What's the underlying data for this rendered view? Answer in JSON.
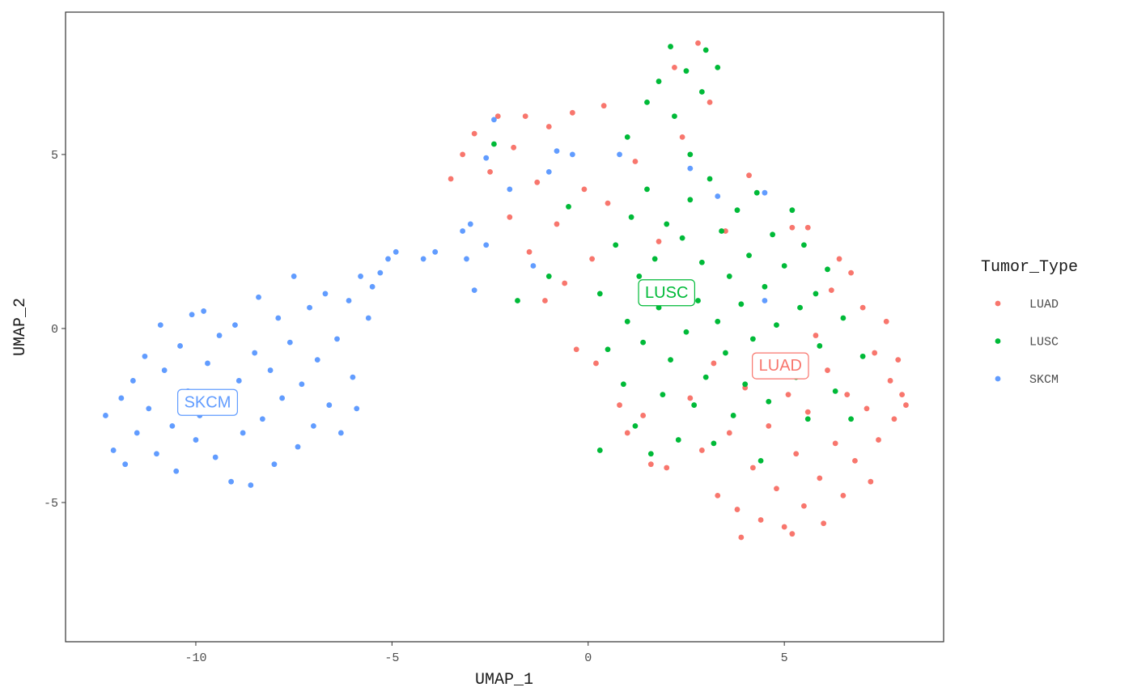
{
  "chart_data": {
    "type": "scatter",
    "x_label": "UMAP_1",
    "y_label": "UMAP_2",
    "xlim": [
      -13.32,
      9.06
    ],
    "ylim": [
      -9.0,
      9.09
    ],
    "xticks": [
      -10,
      -5,
      0,
      5
    ],
    "yticks": [
      -5,
      0,
      5
    ],
    "grid": false,
    "legend_title": "Tumor_Type",
    "legend_position": "right",
    "series": [
      {
        "name": "LUAD",
        "color": "#F8766D",
        "x": [
          -3.5,
          -3.2,
          -2.9,
          -2.5,
          -2.3,
          -2.0,
          -1.9,
          -1.6,
          -1.5,
          -1.3,
          -1.1,
          -1.0,
          -0.8,
          -0.6,
          -0.4,
          -0.3,
          -0.1,
          0.1,
          0.2,
          0.4,
          0.5,
          0.8,
          1.0,
          1.2,
          1.4,
          1.6,
          1.8,
          2.0,
          2.2,
          2.4,
          2.6,
          2.8,
          2.9,
          3.1,
          3.2,
          3.3,
          3.5,
          3.6,
          3.8,
          4.0,
          4.1,
          4.2,
          4.4,
          4.5,
          4.6,
          4.8,
          5.0,
          5.1,
          5.2,
          5.3,
          5.5,
          5.6,
          5.8,
          5.9,
          6.0,
          6.1,
          6.2,
          6.3,
          6.5,
          6.6,
          6.7,
          6.8,
          7.0,
          7.1,
          7.2,
          7.3,
          7.4,
          7.6,
          7.7,
          7.8,
          8.0,
          8.1,
          7.9,
          6.4,
          5.6,
          3.9,
          5.2
        ],
        "y": [
          4.3,
          5.0,
          5.6,
          4.5,
          6.1,
          3.2,
          5.2,
          6.1,
          2.2,
          4.2,
          0.8,
          5.8,
          3.0,
          1.3,
          6.2,
          -0.6,
          4.0,
          2.0,
          -1.0,
          6.4,
          3.6,
          -2.2,
          -3.0,
          4.8,
          -2.5,
          -3.9,
          2.5,
          -4.0,
          7.5,
          5.5,
          -2.0,
          8.2,
          -3.5,
          6.5,
          -1.0,
          -4.8,
          2.8,
          -3.0,
          -5.2,
          -1.7,
          4.4,
          -4.0,
          -5.5,
          -0.8,
          -2.8,
          -4.6,
          -5.7,
          -1.9,
          2.9,
          -3.6,
          -5.1,
          -2.4,
          -0.2,
          -4.3,
          -5.6,
          -1.2,
          1.1,
          -3.3,
          -4.8,
          -1.9,
          1.6,
          -3.8,
          0.6,
          -2.3,
          -4.4,
          -0.7,
          -3.2,
          0.2,
          -1.5,
          -2.6,
          -1.9,
          -2.2,
          -0.9,
          2.0,
          2.9,
          -6.0,
          -5.9
        ]
      },
      {
        "name": "LUSC",
        "color": "#00BA38",
        "x": [
          0.3,
          0.5,
          0.7,
          0.9,
          1.0,
          1.1,
          1.2,
          1.3,
          1.4,
          1.5,
          1.6,
          1.7,
          1.8,
          1.9,
          2.0,
          2.1,
          2.2,
          2.3,
          2.4,
          2.5,
          2.6,
          2.7,
          2.8,
          2.9,
          3.0,
          3.1,
          3.2,
          3.3,
          3.4,
          3.5,
          3.6,
          3.7,
          3.8,
          3.9,
          4.0,
          4.1,
          4.2,
          4.3,
          4.4,
          4.5,
          4.6,
          4.7,
          4.8,
          4.9,
          5.0,
          5.2,
          5.3,
          5.4,
          5.5,
          5.6,
          5.8,
          5.9,
          6.1,
          6.3,
          6.5,
          6.7,
          7.0,
          -0.5,
          -1.0,
          -1.8,
          -2.4,
          1.0,
          1.5,
          1.8,
          2.2,
          2.5,
          2.6,
          2.9,
          3.0,
          3.3,
          2.1,
          0.3
        ],
        "y": [
          1.0,
          -0.6,
          2.4,
          -1.6,
          0.2,
          3.2,
          -2.8,
          1.5,
          -0.4,
          4.0,
          -3.6,
          2.0,
          0.6,
          -1.9,
          3.0,
          -0.9,
          1.3,
          -3.2,
          2.6,
          -0.1,
          3.7,
          -2.2,
          0.8,
          1.9,
          -1.4,
          4.3,
          -3.3,
          0.2,
          2.8,
          -0.7,
          1.5,
          -2.5,
          3.4,
          0.7,
          -1.6,
          2.1,
          -0.3,
          3.9,
          -3.8,
          1.2,
          -2.1,
          2.7,
          0.1,
          -0.9,
          1.8,
          3.4,
          -1.4,
          0.6,
          2.4,
          -2.6,
          1.0,
          -0.5,
          1.7,
          -1.8,
          0.3,
          -2.6,
          -0.8,
          3.5,
          1.5,
          0.8,
          5.3,
          5.5,
          6.5,
          7.1,
          6.1,
          7.4,
          5.0,
          6.8,
          8.0,
          7.5,
          8.1,
          -3.5
        ]
      },
      {
        "name": "SKCM",
        "color": "#619CFF",
        "x": [
          -12.3,
          -12.1,
          -11.9,
          -11.8,
          -11.6,
          -11.5,
          -11.3,
          -11.2,
          -11.0,
          -10.9,
          -10.8,
          -10.6,
          -10.5,
          -10.4,
          -10.2,
          -10.1,
          -10.0,
          -9.9,
          -9.8,
          -9.7,
          -9.5,
          -9.4,
          -9.3,
          -9.1,
          -9.0,
          -8.9,
          -8.8,
          -8.6,
          -8.5,
          -8.4,
          -8.3,
          -8.1,
          -8.0,
          -7.9,
          -7.8,
          -7.6,
          -7.5,
          -7.4,
          -7.3,
          -7.1,
          -7.0,
          -6.9,
          -6.7,
          -6.6,
          -6.4,
          -6.3,
          -6.1,
          -6.0,
          -5.9,
          -5.8,
          -5.6,
          -5.5,
          -5.3,
          -5.1,
          -4.9,
          -4.2,
          -3.9,
          -3.2,
          -3.1,
          -3.0,
          -2.9,
          -2.6,
          -2.6,
          -2.4,
          -2.0,
          -1.4,
          -1.0,
          -0.8,
          -0.4,
          0.8,
          2.6,
          3.3,
          4.5,
          4.5
        ],
        "y": [
          -2.5,
          -3.5,
          -2.0,
          -3.9,
          -1.5,
          -3.0,
          -0.8,
          -2.3,
          -3.6,
          0.1,
          -1.2,
          -2.8,
          -4.1,
          -0.5,
          -1.8,
          0.4,
          -3.2,
          -2.5,
          0.5,
          -1.0,
          -3.7,
          -0.2,
          -2.0,
          -4.4,
          0.1,
          -1.5,
          -3.0,
          -4.5,
          -0.7,
          0.9,
          -2.6,
          -1.2,
          -3.9,
          0.3,
          -2.0,
          -0.4,
          1.5,
          -3.4,
          -1.6,
          0.6,
          -2.8,
          -0.9,
          1.0,
          -2.2,
          -0.3,
          -3.0,
          0.8,
          -1.4,
          -2.3,
          1.5,
          0.3,
          1.2,
          1.6,
          2.0,
          2.2,
          2.0,
          2.2,
          2.8,
          2.0,
          3.0,
          1.1,
          2.4,
          4.9,
          6.0,
          4.0,
          1.8,
          4.5,
          5.1,
          5.0,
          5.0,
          4.6,
          3.8,
          3.9,
          0.8
        ]
      }
    ],
    "annotations": [
      {
        "text": "SKCM",
        "x": -9.7,
        "y": -2.1,
        "color": "#619CFF"
      },
      {
        "text": "LUSC",
        "x": 2.0,
        "y": 1.05,
        "color": "#00BA38"
      },
      {
        "text": "LUAD",
        "x": 4.9,
        "y": -1.05,
        "color": "#F8766D"
      }
    ]
  }
}
